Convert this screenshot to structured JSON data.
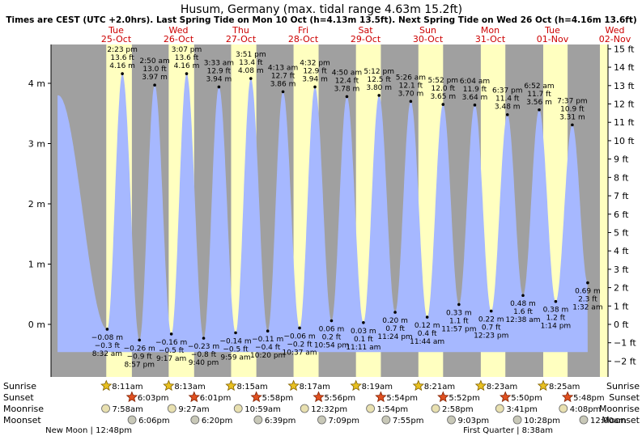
{
  "chart_data": {
    "type": "area",
    "title": "Husum, Germany (max. tidal range 4.63m 15.2ft)",
    "subtitle": "Times are CEST (UTC +2.0hrs). Last Spring Tide on Mon 10 Oct (h=4.13m 13.5ft). Next Spring Tide on Wed 26 Oct (h=4.16m 13.6ft)",
    "x_unit": "days from Tue 25-Oct 00:00",
    "xlim": [
      -0.5,
      8.0
    ],
    "ylim": [
      -0.9,
      4.7
    ],
    "y_left_ticks": [
      {
        "v": 4,
        "label": "4 m"
      },
      {
        "v": 3,
        "label": "3 m"
      },
      {
        "v": 2,
        "label": "2 m"
      },
      {
        "v": 1,
        "label": "1 m"
      },
      {
        "v": 0,
        "label": "0 m"
      }
    ],
    "y_right_ticks": [
      "15 ft",
      "14 ft",
      "13 ft",
      "12 ft",
      "11 ft",
      "10 ft",
      "9 ft",
      "8 ft",
      "7 ft",
      "6 ft",
      "5 ft",
      "4 ft",
      "3 ft",
      "2 ft",
      "1 ft",
      "0 ft",
      "−1 ft",
      "−2 ft"
    ],
    "days": [
      {
        "dow": "Tue",
        "date": "25-Oct",
        "sunrise": "8:11am",
        "sunset": "6:03pm",
        "moonrise": "7:58am",
        "moonset": "6:06pm"
      },
      {
        "dow": "Wed",
        "date": "26-Oct",
        "sunrise": "8:13am",
        "sunset": "6:01pm",
        "moonrise": "9:27am",
        "moonset": "6:20pm"
      },
      {
        "dow": "Thu",
        "date": "27-Oct",
        "sunrise": "8:15am",
        "sunset": "5:58pm",
        "moonrise": "10:59am",
        "moonset": "6:39pm"
      },
      {
        "dow": "Fri",
        "date": "28-Oct",
        "sunrise": "8:17am",
        "sunset": "5:56pm",
        "moonrise": "12:32pm",
        "moonset": "7:09pm"
      },
      {
        "dow": "Sat",
        "date": "29-Oct",
        "sunrise": "8:19am",
        "sunset": "5:54pm",
        "moonrise": "1:54pm",
        "moonset": "7:55pm"
      },
      {
        "dow": "Sun",
        "date": "30-Oct",
        "sunrise": "8:21am",
        "sunset": "5:52pm",
        "moonrise": "2:58pm",
        "moonset": "9:03pm"
      },
      {
        "dow": "Mon",
        "date": "31-Oct",
        "sunrise": "8:23am",
        "sunset": "5:50pm",
        "moonrise": "3:41pm",
        "moonset": "10:28pm"
      },
      {
        "dow": "Tue",
        "date": "01-Nov",
        "sunrise": "8:25am",
        "sunset": "5:48pm",
        "moonrise": "4:08pm",
        "moonset": "12:00am"
      },
      {
        "dow": "Wed",
        "date": "02-Nov"
      }
    ],
    "highs": [
      {
        "x": -0.43,
        "m": 3.8
      },
      {
        "x": 0.599,
        "time": "2:23 pm",
        "ft": "13.6 ft",
        "m": 4.16,
        "m_label": "4.16 m"
      },
      {
        "x": 1.118,
        "time": "2:50 am",
        "ft": "13.0 ft",
        "m": 3.97,
        "m_label": "3.97 m"
      },
      {
        "x": 1.63,
        "time": "3:07 pm",
        "ft": "13.6 ft",
        "m": 4.16,
        "m_label": "4.16 m"
      },
      {
        "x": 2.148,
        "time": "3:33 am",
        "ft": "12.9 ft",
        "m": 3.94,
        "m_label": "3.94 m"
      },
      {
        "x": 2.66,
        "time": "3:51 pm",
        "ft": "13.4 ft",
        "m": 4.08,
        "m_label": "4.08 m"
      },
      {
        "x": 3.176,
        "time": "4:13 am",
        "ft": "12.7 ft",
        "m": 3.86,
        "m_label": "3.86 m"
      },
      {
        "x": 3.689,
        "time": "4:32 pm",
        "ft": "12.9 ft",
        "m": 3.94,
        "m_label": "3.94 m"
      },
      {
        "x": 4.201,
        "time": "4:50 am",
        "ft": "12.4 ft",
        "m": 3.78,
        "m_label": "3.78 m"
      },
      {
        "x": 4.717,
        "time": "5:12 pm",
        "ft": "12.5 ft",
        "m": 3.8,
        "m_label": "3.80 m"
      },
      {
        "x": 5.226,
        "time": "5:26 am",
        "ft": "12.1 ft",
        "m": 3.7,
        "m_label": "3.70 m"
      },
      {
        "x": 5.744,
        "time": "5:52 pm",
        "ft": "12.0 ft",
        "m": 3.65,
        "m_label": "3.65 m"
      },
      {
        "x": 6.253,
        "time": "6:04 am",
        "ft": "11.9 ft",
        "m": 3.64,
        "m_label": "3.64 m"
      },
      {
        "x": 6.776,
        "time": "6:37 pm",
        "ft": "11.4 ft",
        "m": 3.48,
        "m_label": "3.48 m"
      },
      {
        "x": 7.286,
        "time": "6:52 am",
        "ft": "11.7 ft",
        "m": 3.56,
        "m_label": "3.56 m"
      },
      {
        "x": 7.817,
        "time": "7:37 pm",
        "ft": "10.9 ft",
        "m": 3.31,
        "m_label": "3.31 m"
      }
    ],
    "lows": [
      {
        "x": 0.356,
        "time": "8:32 am",
        "ft": "−0.3 ft",
        "m": -0.08,
        "m_label": "−0.08 m"
      },
      {
        "x": 0.873,
        "time": "8:57 pm",
        "ft": "−0.9 ft",
        "m": -0.26,
        "m_label": "−0.26 m"
      },
      {
        "x": 1.385,
        "time": "9:17 am",
        "ft": "−0.5 ft",
        "m": -0.16,
        "m_label": "−0.16 m"
      },
      {
        "x": 1.903,
        "time": "9:40 pm",
        "ft": "−0.8 ft",
        "m": -0.23,
        "m_label": "−0.23 m"
      },
      {
        "x": 2.416,
        "time": "9:59 am",
        "ft": "−0.5 ft",
        "m": -0.14,
        "m_label": "−0.14 m"
      },
      {
        "x": 2.931,
        "time": "10:20 pm",
        "ft": "−0.4 ft",
        "m": -0.11,
        "m_label": "−0.11 m"
      },
      {
        "x": 3.442,
        "time": "10:37 am",
        "ft": "−0.2 ft",
        "m": -0.06,
        "m_label": "−0.06 m"
      },
      {
        "x": 3.954,
        "time": "10:54 pm",
        "ft": "0.2 ft",
        "m": 0.06,
        "m_label": "0.06 m"
      },
      {
        "x": 4.466,
        "time": "11:11 am",
        "ft": "0.1 ft",
        "m": 0.03,
        "m_label": "0.03 m"
      },
      {
        "x": 4.975,
        "time": "11:24 pm",
        "ft": "0.7 ft",
        "m": 0.2,
        "m_label": "0.20 m"
      },
      {
        "x": 5.489,
        "time": "11:44 am",
        "ft": "0.4 ft",
        "m": 0.12,
        "m_label": "0.12 m"
      },
      {
        "x": 5.998,
        "time": "11:57 pm",
        "ft": "1.1 ft",
        "m": 0.33,
        "m_label": "0.33 m"
      },
      {
        "x": 6.516,
        "time": "12:23 pm",
        "ft": "0.7 ft",
        "m": 0.22,
        "m_label": "0.22 m"
      },
      {
        "x": 7.026,
        "time": "12:38 am",
        "ft": "1.6 ft",
        "m": 0.48,
        "m_label": "0.48 m"
      },
      {
        "x": 7.551,
        "time": "1:14 pm",
        "ft": "1.2 ft",
        "m": 0.38,
        "m_label": "0.38 m"
      },
      {
        "x": 8.064,
        "time": "1:32 am",
        "ft": "2.3 ft",
        "m": 0.69,
        "m_label": "0.69 m"
      }
    ],
    "moon_phases": [
      {
        "label": "New Moon | 12:48pm"
      },
      {
        "label": "First Quarter | 8:38am"
      }
    ],
    "row_labels": {
      "sunrise": "Sunrise",
      "sunset": "Sunset",
      "moonrise": "Moonrise",
      "moonset": "Moonset"
    },
    "colors": {
      "night": "#a0a0a0",
      "day": "#ffffc0",
      "water": "#a6b8ff",
      "text": "#000000",
      "date_red": "#cc0000"
    }
  }
}
